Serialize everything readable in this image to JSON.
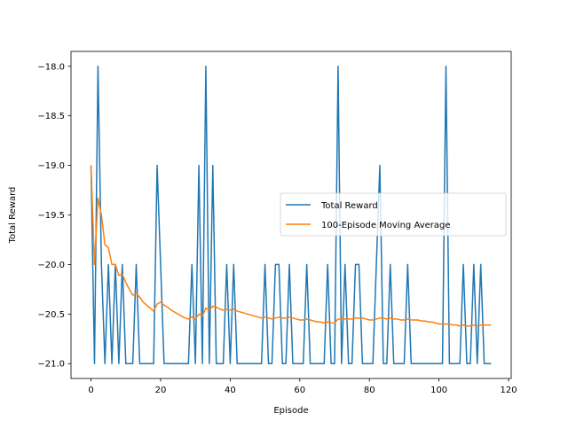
{
  "chart_data": {
    "type": "line",
    "title": "",
    "xlabel": "Episode",
    "ylabel": "Total Reward",
    "xlim": [
      -5.75,
      120.75
    ],
    "ylim": [
      -21.15,
      -17.85
    ],
    "xticks": [
      0,
      20,
      40,
      60,
      80,
      100,
      120
    ],
    "xtick_labels": [
      "0",
      "20",
      "40",
      "60",
      "80",
      "100",
      "120"
    ],
    "yticks": [
      -21.0,
      -20.5,
      -20.0,
      -19.5,
      -19.0,
      -18.5,
      -18.0
    ],
    "ytick_labels": [
      "−21.0",
      "−20.5",
      "−20.0",
      "−19.5",
      "−19.0",
      "−18.5",
      "−18.0"
    ],
    "grid": false,
    "legend_position": "center-right",
    "series": [
      {
        "name": "Total Reward",
        "color": "#1f77b4",
        "x": [
          0,
          1,
          2,
          3,
          4,
          5,
          6,
          7,
          8,
          9,
          10,
          11,
          12,
          13,
          14,
          15,
          16,
          17,
          18,
          19,
          20,
          21,
          22,
          23,
          24,
          25,
          26,
          27,
          28,
          29,
          30,
          31,
          32,
          33,
          34,
          35,
          36,
          37,
          38,
          39,
          40,
          41,
          42,
          43,
          44,
          45,
          46,
          47,
          48,
          49,
          50,
          51,
          52,
          53,
          54,
          55,
          56,
          57,
          58,
          59,
          60,
          61,
          62,
          63,
          64,
          65,
          66,
          67,
          68,
          69,
          70,
          71,
          72,
          73,
          74,
          75,
          76,
          77,
          78,
          79,
          80,
          81,
          82,
          83,
          84,
          85,
          86,
          87,
          88,
          89,
          90,
          91,
          92,
          93,
          94,
          95,
          96,
          97,
          98,
          99,
          100,
          101,
          102,
          103,
          104,
          105,
          106,
          107,
          108,
          109,
          110,
          111,
          112,
          113,
          114,
          115
        ],
        "y": [
          -19,
          -21,
          -18,
          -20,
          -21,
          -20,
          -21,
          -20,
          -21,
          -20,
          -21,
          -21,
          -21,
          -20,
          -21,
          -21,
          -21,
          -21,
          -21,
          -19,
          -20,
          -21,
          -21,
          -21,
          -21,
          -21,
          -21,
          -21,
          -21,
          -20,
          -21,
          -19,
          -21,
          -18,
          -21,
          -19,
          -21,
          -21,
          -21,
          -20,
          -21,
          -20,
          -21,
          -21,
          -21,
          -21,
          -21,
          -21,
          -21,
          -21,
          -20,
          -21,
          -21,
          -20,
          -20,
          -21,
          -21,
          -20,
          -21,
          -21,
          -21,
          -21,
          -20,
          -21,
          -21,
          -21,
          -21,
          -21,
          -20,
          -21,
          -21,
          -18,
          -21,
          -20,
          -21,
          -21,
          -20,
          -20,
          -21,
          -21,
          -21,
          -21,
          -20,
          -19,
          -21,
          -21,
          -20,
          -21,
          -21,
          -21,
          -21,
          -20,
          -21,
          -21,
          -21,
          -21,
          -21,
          -21,
          -21,
          -21,
          -21,
          -21,
          -18,
          -21,
          -21,
          -21,
          -21,
          -20,
          -21,
          -21,
          -20,
          -21,
          -20,
          -21,
          -21,
          -21
        ]
      },
      {
        "name": "100-Episode Moving Average",
        "color": "#ff7f0e",
        "x": [
          0,
          1,
          2,
          3,
          4,
          5,
          6,
          7,
          8,
          9,
          10,
          11,
          12,
          13,
          14,
          15,
          16,
          17,
          18,
          19,
          20,
          21,
          22,
          23,
          24,
          25,
          26,
          27,
          28,
          29,
          30,
          31,
          32,
          33,
          34,
          35,
          36,
          37,
          38,
          39,
          40,
          41,
          42,
          43,
          44,
          45,
          46,
          47,
          48,
          49,
          50,
          51,
          52,
          53,
          54,
          55,
          56,
          57,
          58,
          59,
          60,
          61,
          62,
          63,
          64,
          65,
          66,
          67,
          68,
          69,
          70,
          71,
          72,
          73,
          74,
          75,
          76,
          77,
          78,
          79,
          80,
          81,
          82,
          83,
          84,
          85,
          86,
          87,
          88,
          89,
          90,
          91,
          92,
          93,
          94,
          95,
          96,
          97,
          98,
          99,
          100,
          101,
          102,
          103,
          104,
          105,
          106,
          107,
          108,
          109,
          110,
          111,
          112,
          113,
          114,
          115
        ],
        "y": [
          -19.0,
          -20.0,
          -19.33,
          -19.5,
          -19.8,
          -19.83,
          -20.0,
          -20.0,
          -20.11,
          -20.1,
          -20.18,
          -20.25,
          -20.31,
          -20.29,
          -20.33,
          -20.38,
          -20.41,
          -20.44,
          -20.47,
          -20.4,
          -20.38,
          -20.41,
          -20.43,
          -20.46,
          -20.48,
          -20.5,
          -20.52,
          -20.54,
          -20.55,
          -20.53,
          -20.55,
          -20.5,
          -20.52,
          -20.44,
          -20.46,
          -20.42,
          -20.43,
          -20.45,
          -20.46,
          -20.45,
          -20.46,
          -20.45,
          -20.47,
          -20.48,
          -20.49,
          -20.5,
          -20.51,
          -20.52,
          -20.53,
          -20.54,
          -20.53,
          -20.54,
          -20.55,
          -20.54,
          -20.53,
          -20.54,
          -20.54,
          -20.53,
          -20.54,
          -20.55,
          -20.56,
          -20.56,
          -20.55,
          -20.56,
          -20.57,
          -20.58,
          -20.58,
          -20.59,
          -20.58,
          -20.59,
          -20.59,
          -20.55,
          -20.55,
          -20.55,
          -20.55,
          -20.55,
          -20.54,
          -20.54,
          -20.54,
          -20.55,
          -20.56,
          -20.56,
          -20.55,
          -20.54,
          -20.54,
          -20.55,
          -20.54,
          -20.55,
          -20.55,
          -20.56,
          -20.56,
          -20.55,
          -20.56,
          -20.56,
          -20.56,
          -20.57,
          -20.57,
          -20.58,
          -20.58,
          -20.59,
          -20.6,
          -20.6,
          -20.6,
          -20.6,
          -20.61,
          -20.61,
          -20.62,
          -20.61,
          -20.62,
          -20.62,
          -20.61,
          -20.62,
          -20.61,
          -20.61,
          -20.61,
          -20.61
        ]
      }
    ]
  }
}
